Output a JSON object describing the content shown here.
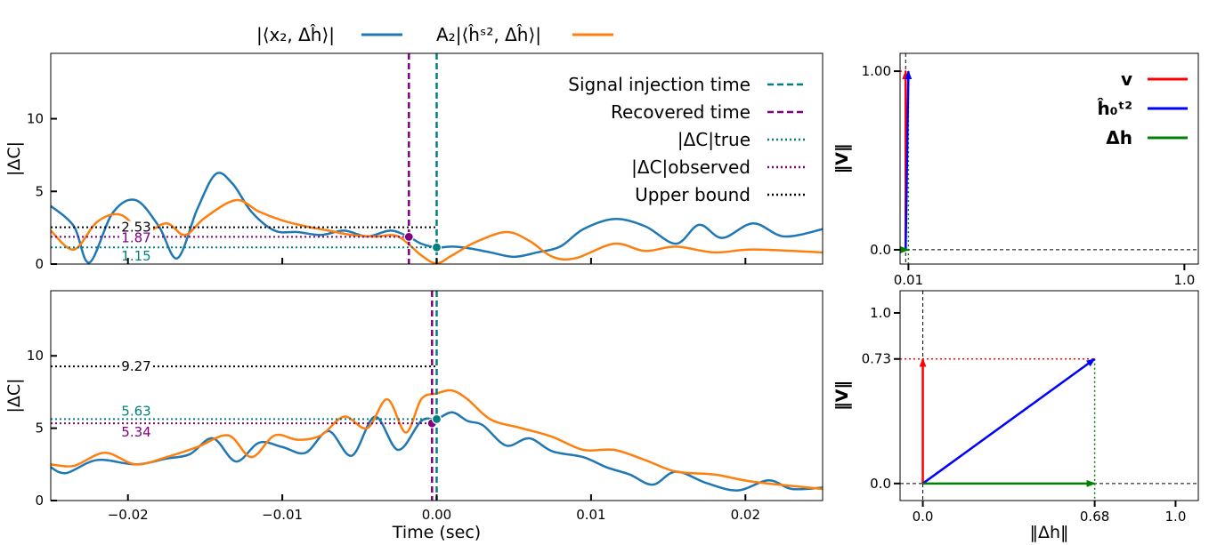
{
  "legend_top": [
    {
      "label": "|⟨x₂, Δĥ⟩|",
      "color": "#1f77b4"
    },
    {
      "label": "A₂|⟨ĥˢ², Δĥ⟩|",
      "color": "#ff7f0e"
    }
  ],
  "colors": {
    "blue": "#1f77b4",
    "orange": "#ff7f0e",
    "teal": "#008080",
    "purple": "#800080",
    "black": "#000000",
    "red": "#ff0000",
    "vblue": "#0000ff",
    "green": "#008000"
  },
  "chart_data": [
    {
      "type": "line",
      "id": "top-left",
      "xlim": [
        -0.025,
        0.025
      ],
      "ylim": [
        0,
        14.5
      ],
      "yticks": [
        0,
        5,
        10
      ],
      "xticks": [
        -0.02,
        -0.01,
        0.0,
        0.01,
        0.02
      ],
      "ylabel": "|ΔC|",
      "legend": [
        {
          "label": "Signal injection time",
          "color": "#008080",
          "dash": "dashed"
        },
        {
          "label": "Recovered time",
          "color": "#800080",
          "dash": "dashed"
        },
        {
          "label": "|ΔC|true",
          "color": "#008080",
          "dash": "dotted"
        },
        {
          "label": "|ΔC|observed",
          "color": "#800080",
          "dash": "dotted"
        },
        {
          "label": "Upper bound",
          "color": "#000000",
          "dash": "dotted"
        }
      ],
      "injection_time": 0.0,
      "recovered_time": -0.0018,
      "hlines": [
        {
          "value": 2.53,
          "label": "2.53",
          "color": "#000000"
        },
        {
          "value": 1.87,
          "label": "1.87",
          "color": "#800080"
        },
        {
          "value": 1.15,
          "label": "1.15",
          "color": "#008080"
        }
      ],
      "series": [
        {
          "color": "#1f77b4",
          "x": [
            -0.025,
            -0.0235,
            -0.0225,
            -0.021,
            -0.0195,
            -0.018,
            -0.0168,
            -0.0155,
            -0.0143,
            -0.0132,
            -0.012,
            -0.0105,
            -0.009,
            -0.0075,
            -0.006,
            -0.0045,
            -0.003,
            -0.0018,
            -0.001,
            0.0,
            0.001,
            0.002,
            0.0035,
            0.005,
            0.0065,
            0.008,
            0.0095,
            0.0115,
            0.0135,
            0.0155,
            0.017,
            0.0185,
            0.0205,
            0.0225,
            0.025
          ],
          "values": [
            4.0,
            2.6,
            0.1,
            3.5,
            4.4,
            2.6,
            0.4,
            3.8,
            6.2,
            5.5,
            3.6,
            2.3,
            2.2,
            2.0,
            2.3,
            1.9,
            2.3,
            1.87,
            1.4,
            1.15,
            1.2,
            1.1,
            0.8,
            0.5,
            0.8,
            1.2,
            2.4,
            3.1,
            2.6,
            1.4,
            2.7,
            1.8,
            2.8,
            1.9,
            2.4
          ]
        },
        {
          "color": "#ff7f0e",
          "x": [
            -0.025,
            -0.0235,
            -0.022,
            -0.0205,
            -0.019,
            -0.0175,
            -0.0163,
            -0.015,
            -0.013,
            -0.0115,
            -0.01,
            -0.0085,
            -0.007,
            -0.0055,
            -0.004,
            -0.0025,
            -0.001,
            0.0,
            0.001,
            0.0025,
            0.0045,
            0.006,
            0.0075,
            0.009,
            0.0115,
            0.0135,
            0.0155,
            0.018,
            0.0205,
            0.025
          ],
          "values": [
            2.3,
            1.0,
            2.9,
            3.4,
            2.2,
            2.8,
            2.0,
            3.2,
            4.4,
            3.6,
            3.0,
            2.6,
            2.3,
            2.0,
            1.9,
            1.9,
            0.6,
            0.05,
            0.6,
            1.5,
            2.2,
            1.6,
            0.5,
            0.4,
            1.4,
            0.9,
            1.2,
            0.8,
            1.0,
            0.8
          ]
        }
      ]
    },
    {
      "type": "line",
      "id": "bottom-left",
      "xlim": [
        -0.025,
        0.025
      ],
      "ylim": [
        0,
        14.5
      ],
      "yticks": [
        0,
        5,
        10
      ],
      "xticks": [
        -0.02,
        -0.01,
        0.0,
        0.01,
        0.02
      ],
      "xticklabels": [
        "−0.02",
        "−0.01",
        "0.00",
        "0.01",
        "0.02"
      ],
      "xlabel": "Time (sec)",
      "ylabel": "|ΔC|",
      "injection_time": 0.0,
      "recovered_time": -0.0003,
      "hlines": [
        {
          "value": 9.27,
          "label": "9.27",
          "color": "#000000"
        },
        {
          "value": 5.63,
          "label": "5.63",
          "color": "#008080"
        },
        {
          "value": 5.34,
          "label": "5.34",
          "color": "#800080"
        }
      ],
      "series": [
        {
          "color": "#1f77b4",
          "x": [
            -0.025,
            -0.024,
            -0.022,
            -0.0195,
            -0.0175,
            -0.016,
            -0.0145,
            -0.013,
            -0.0115,
            -0.01,
            -0.0085,
            -0.007,
            -0.0055,
            -0.004,
            -0.0025,
            -0.001,
            0.0,
            0.001,
            0.002,
            0.003,
            0.0045,
            0.006,
            0.0075,
            0.0095,
            0.011,
            0.0125,
            0.014,
            0.0155,
            0.0175,
            0.0195,
            0.0215,
            0.023,
            0.025
          ],
          "values": [
            2.3,
            1.9,
            2.8,
            2.5,
            2.9,
            3.2,
            4.3,
            2.7,
            4.0,
            3.7,
            3.3,
            4.8,
            3.1,
            5.8,
            3.5,
            5.5,
            5.63,
            6.1,
            5.5,
            5.2,
            3.8,
            4.3,
            3.4,
            3.0,
            2.3,
            1.8,
            1.1,
            2.0,
            1.2,
            0.7,
            1.4,
            0.8,
            0.9
          ]
        },
        {
          "color": "#ff7f0e",
          "x": [
            -0.025,
            -0.0235,
            -0.0215,
            -0.0195,
            -0.0175,
            -0.0155,
            -0.0135,
            -0.012,
            -0.0105,
            -0.009,
            -0.0075,
            -0.006,
            -0.0045,
            -0.0032,
            -0.002,
            -0.001,
            0.0,
            0.001,
            0.002,
            0.0035,
            0.0055,
            0.0075,
            0.0095,
            0.0115,
            0.0135,
            0.0155,
            0.018,
            0.0205,
            0.025
          ],
          "values": [
            2.5,
            2.4,
            3.3,
            2.5,
            3.0,
            3.7,
            4.5,
            3.0,
            4.5,
            4.2,
            4.5,
            5.8,
            5.0,
            7.0,
            4.7,
            7.0,
            7.4,
            7.6,
            7.0,
            5.6,
            5.0,
            4.4,
            3.5,
            3.5,
            2.8,
            2.0,
            1.8,
            1.3,
            0.8
          ]
        }
      ]
    },
    {
      "type": "line",
      "id": "top-right",
      "xlim": [
        -0.02,
        1.05
      ],
      "ylim": [
        -0.08,
        1.1
      ],
      "xticks": [
        0.01,
        1.0
      ],
      "xticklabels": [
        "0.01",
        "1.0"
      ],
      "yticks": [
        0.0,
        1.0
      ],
      "yticklabels": [
        "0.0",
        "1.00"
      ],
      "ylabel": "‖V‖",
      "legend": [
        {
          "label": "v",
          "color": "#ff0000"
        },
        {
          "label": "ĥ₀ᵗ²",
          "color": "#0000ff"
        },
        {
          "label": "Δh",
          "color": "#008000"
        }
      ],
      "vectors": [
        {
          "name": "v",
          "from": [
            0,
            0
          ],
          "to": [
            0,
            1.0
          ],
          "color": "#ff0000"
        },
        {
          "name": "h0",
          "from": [
            0,
            0
          ],
          "to": [
            0.01,
            1.0
          ],
          "color": "#0000ff"
        },
        {
          "name": "delta-h",
          "from": [
            0,
            0
          ],
          "to": [
            0.01,
            0
          ],
          "color": "#008000"
        }
      ]
    },
    {
      "type": "line",
      "id": "bottom-right",
      "xlim": [
        -0.09,
        1.09
      ],
      "ylim": [
        -0.1,
        1.13
      ],
      "xticks": [
        0.0,
        0.68,
        1.0
      ],
      "xticklabels": [
        "0.0",
        "0.68",
        "1.0"
      ],
      "yticks": [
        0.0,
        0.73,
        1.0
      ],
      "yticklabels": [
        "0.0",
        "0.73",
        "1.0"
      ],
      "xlabel": "‖Δh‖",
      "ylabel": "‖V‖",
      "vectors": [
        {
          "name": "v",
          "from": [
            0,
            0
          ],
          "to": [
            0,
            0.73
          ],
          "color": "#ff0000"
        },
        {
          "name": "h0",
          "from": [
            0,
            0
          ],
          "to": [
            0.68,
            0.73
          ],
          "color": "#0000ff"
        },
        {
          "name": "delta-h",
          "from": [
            0,
            0
          ],
          "to": [
            0.68,
            0
          ],
          "color": "#008000"
        }
      ]
    }
  ]
}
